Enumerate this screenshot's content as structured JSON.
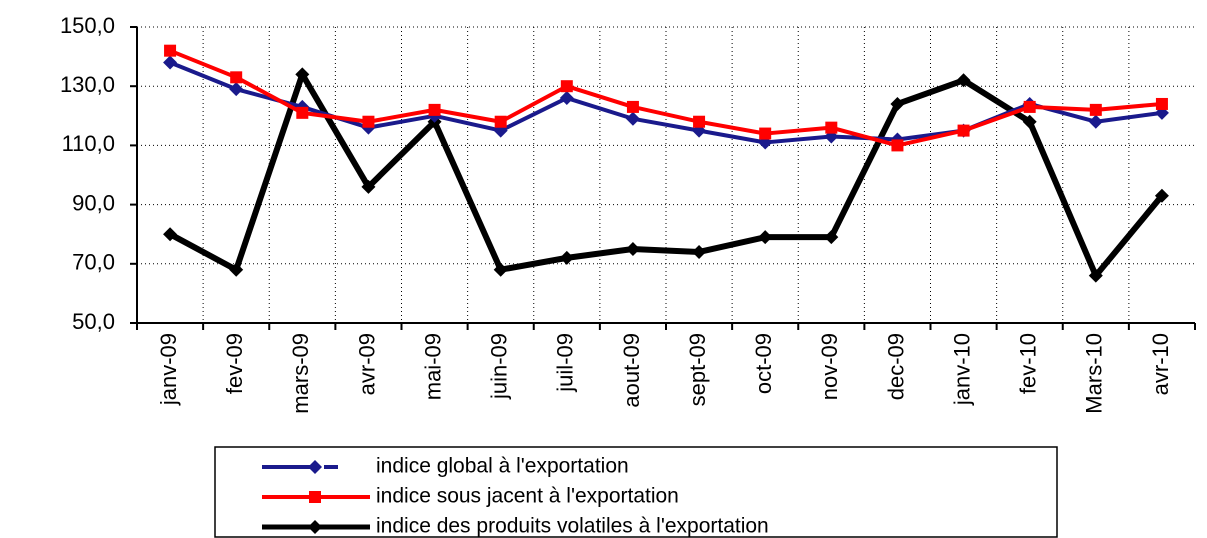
{
  "chart_data": {
    "type": "line",
    "categories": [
      "janv-09",
      "fev-09",
      "mars-09",
      "avr-09",
      "mai-09",
      "juin-09",
      "juil-09",
      "aout-09",
      "sept-09",
      "oct-09",
      "nov-09",
      "dec-09",
      "janv-10",
      "fev-10",
      "Mars-10",
      "avr-10"
    ],
    "series": [
      {
        "name": "indice global à l'exportation",
        "color": "#1a1a8c",
        "marker": "diamond",
        "values": [
          138,
          129,
          123,
          116,
          120,
          115,
          126,
          119,
          115,
          111,
          113,
          112,
          115,
          124,
          118,
          121
        ]
      },
      {
        "name": "indice sous jacent à l'exportation",
        "color": "#ff0000",
        "marker": "square",
        "values": [
          142,
          133,
          121,
          118,
          122,
          118,
          130,
          123,
          118,
          114,
          116,
          110,
          115,
          123,
          122,
          124
        ]
      },
      {
        "name": "indice des produits volatiles à l'exportation",
        "color": "#000000",
        "marker": "diamond",
        "values": [
          80,
          68,
          134,
          96,
          118,
          68,
          72,
          75,
          74,
          79,
          79,
          124,
          132,
          118,
          66,
          93
        ]
      }
    ],
    "ylim": [
      50,
      150
    ],
    "yticks": [
      {
        "value": 50,
        "label": "50,0"
      },
      {
        "value": 70,
        "label": "70,0"
      },
      {
        "value": 90,
        "label": "90,0"
      },
      {
        "value": 110,
        "label": "110,0"
      },
      {
        "value": 130,
        "label": "130,0"
      },
      {
        "value": 150,
        "label": "150,0"
      }
    ],
    "grid": true
  }
}
